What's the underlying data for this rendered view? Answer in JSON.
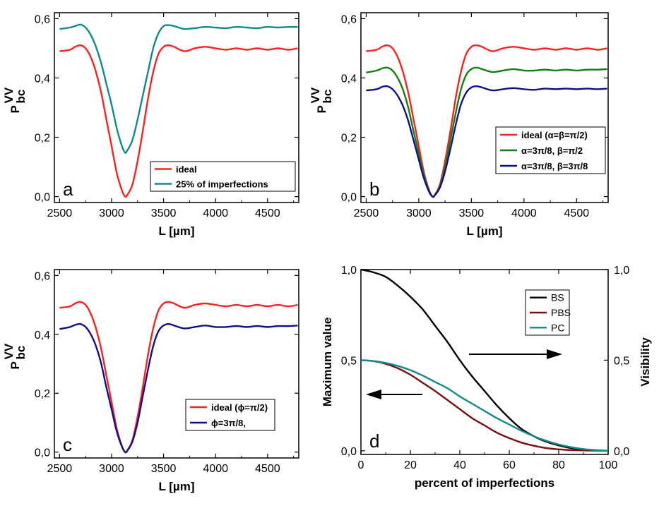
{
  "chart_data": [
    {
      "type": "line",
      "panel_label": "a",
      "xlabel": "L [µm]",
      "ylabel_main": "P",
      "ylabel_sup": "VV",
      "ylabel_sub": "bc",
      "xlim": [
        2450,
        4800
      ],
      "ylim": [
        -0.02,
        0.62
      ],
      "xticks": [
        2500,
        3000,
        3500,
        4000,
        4500
      ],
      "xtick_labels": [
        "2500",
        "3000",
        "3500",
        "4000",
        "4500"
      ],
      "yticks": [
        0.0,
        0.2,
        0.4,
        0.6
      ],
      "ytick_labels": [
        "0,0",
        "0,2",
        "0,4",
        "0,6"
      ],
      "legend_position": "bottom-right",
      "series": [
        {
          "name": "ideal",
          "color": "#ff2020",
          "x": [
            2500,
            2600,
            2650,
            2700,
            2750,
            2800,
            2850,
            2900,
            2950,
            3000,
            3050,
            3100,
            3130,
            3150,
            3200,
            3250,
            3300,
            3350,
            3400,
            3450,
            3500,
            3550,
            3600,
            3700,
            3800,
            3900,
            4000,
            4100,
            4200,
            4300,
            4400,
            4500,
            4600,
            4700,
            4790
          ],
          "y": [
            0.49,
            0.495,
            0.505,
            0.51,
            0.5,
            0.47,
            0.42,
            0.35,
            0.26,
            0.17,
            0.08,
            0.02,
            0.0,
            0.005,
            0.04,
            0.12,
            0.22,
            0.33,
            0.42,
            0.48,
            0.505,
            0.51,
            0.505,
            0.49,
            0.5,
            0.505,
            0.5,
            0.495,
            0.5,
            0.495,
            0.5,
            0.495,
            0.5,
            0.495,
            0.5
          ]
        },
        {
          "name": "25% of imperfections",
          "color": "#128a8a",
          "x": [
            2500,
            2600,
            2650,
            2700,
            2750,
            2800,
            2850,
            2900,
            2950,
            3000,
            3050,
            3100,
            3130,
            3150,
            3200,
            3250,
            3300,
            3350,
            3400,
            3450,
            3500,
            3550,
            3600,
            3700,
            3800,
            3900,
            4000,
            4100,
            4200,
            4300,
            4400,
            4500,
            4600,
            4700,
            4790
          ],
          "y": [
            0.565,
            0.57,
            0.575,
            0.58,
            0.57,
            0.545,
            0.505,
            0.45,
            0.38,
            0.31,
            0.23,
            0.17,
            0.148,
            0.155,
            0.19,
            0.26,
            0.34,
            0.42,
            0.5,
            0.55,
            0.575,
            0.578,
            0.575,
            0.565,
            0.568,
            0.572,
            0.57,
            0.568,
            0.572,
            0.57,
            0.568,
            0.572,
            0.57,
            0.572,
            0.572
          ]
        }
      ]
    },
    {
      "type": "line",
      "panel_label": "b",
      "xlabel": "L [µm]",
      "ylabel_main": "P",
      "ylabel_sup": "VV",
      "ylabel_sub": "bc",
      "xlim": [
        2450,
        4800
      ],
      "ylim": [
        -0.02,
        0.62
      ],
      "xticks": [
        2500,
        3000,
        3500,
        4000,
        4500
      ],
      "xtick_labels": [
        "2500",
        "3000",
        "3500",
        "4000",
        "4500"
      ],
      "yticks": [
        0.0,
        0.2,
        0.4,
        0.6
      ],
      "ytick_labels": [
        "0,0",
        "0,2",
        "0,4",
        "0,6"
      ],
      "legend_position": "bottom-right",
      "series": [
        {
          "name": "ideal (α=β=π/2)",
          "color": "#ff2020",
          "x": [
            2500,
            2600,
            2650,
            2700,
            2750,
            2800,
            2850,
            2900,
            2950,
            3000,
            3050,
            3100,
            3130,
            3150,
            3200,
            3250,
            3300,
            3350,
            3400,
            3450,
            3500,
            3550,
            3600,
            3700,
            3800,
            3900,
            4000,
            4100,
            4200,
            4300,
            4400,
            4500,
            4600,
            4700,
            4790
          ],
          "y": [
            0.49,
            0.495,
            0.505,
            0.51,
            0.5,
            0.47,
            0.42,
            0.35,
            0.26,
            0.17,
            0.08,
            0.02,
            0.0,
            0.005,
            0.04,
            0.12,
            0.22,
            0.33,
            0.42,
            0.48,
            0.505,
            0.51,
            0.505,
            0.49,
            0.5,
            0.505,
            0.5,
            0.495,
            0.5,
            0.495,
            0.5,
            0.495,
            0.5,
            0.495,
            0.5
          ]
        },
        {
          "name": "α=3π/8, β=π/2",
          "color": "#138013",
          "x": [
            2500,
            2600,
            2650,
            2700,
            2750,
            2800,
            2850,
            2900,
            2950,
            3000,
            3050,
            3100,
            3130,
            3150,
            3200,
            3250,
            3300,
            3350,
            3400,
            3450,
            3500,
            3550,
            3600,
            3700,
            3800,
            3900,
            4000,
            4100,
            4200,
            4300,
            4400,
            4500,
            4600,
            4700,
            4790
          ],
          "y": [
            0.418,
            0.425,
            0.432,
            0.435,
            0.425,
            0.4,
            0.36,
            0.3,
            0.22,
            0.145,
            0.07,
            0.018,
            0.0,
            0.004,
            0.035,
            0.1,
            0.19,
            0.28,
            0.36,
            0.41,
            0.43,
            0.435,
            0.43,
            0.42,
            0.425,
            0.43,
            0.425,
            0.425,
            0.428,
            0.425,
            0.428,
            0.425,
            0.428,
            0.428,
            0.43
          ]
        },
        {
          "name": "α=3π/8, β=3π/8",
          "color": "#10108a",
          "x": [
            2500,
            2600,
            2650,
            2700,
            2750,
            2800,
            2850,
            2900,
            2950,
            3000,
            3050,
            3100,
            3130,
            3150,
            3200,
            3250,
            3300,
            3350,
            3400,
            3450,
            3500,
            3550,
            3600,
            3700,
            3800,
            3900,
            4000,
            4100,
            4200,
            4300,
            4400,
            4500,
            4600,
            4700,
            4790
          ],
          "y": [
            0.358,
            0.362,
            0.37,
            0.372,
            0.362,
            0.34,
            0.305,
            0.255,
            0.19,
            0.125,
            0.06,
            0.015,
            0.0,
            0.003,
            0.03,
            0.085,
            0.16,
            0.24,
            0.31,
            0.35,
            0.368,
            0.372,
            0.368,
            0.358,
            0.362,
            0.366,
            0.362,
            0.36,
            0.364,
            0.362,
            0.364,
            0.362,
            0.364,
            0.362,
            0.364
          ]
        }
      ]
    },
    {
      "type": "line",
      "panel_label": "c",
      "xlabel": "L [µm]",
      "ylabel_main": "P",
      "ylabel_sup": "VV",
      "ylabel_sub": "bc",
      "xlim": [
        2450,
        4800
      ],
      "ylim": [
        -0.02,
        0.62
      ],
      "xticks": [
        2500,
        3000,
        3500,
        4000,
        4500
      ],
      "xtick_labels": [
        "2500",
        "3000",
        "3500",
        "4000",
        "4500"
      ],
      "yticks": [
        0.0,
        0.2,
        0.4,
        0.6
      ],
      "ytick_labels": [
        "0,0",
        "0,2",
        "0,4",
        "0,6"
      ],
      "legend_position": "bottom-right",
      "series": [
        {
          "name": "ideal (ϕ=π/2)",
          "color": "#ff2020",
          "x": [
            2500,
            2600,
            2650,
            2700,
            2750,
            2800,
            2850,
            2900,
            2950,
            3000,
            3050,
            3100,
            3130,
            3150,
            3200,
            3250,
            3300,
            3350,
            3400,
            3450,
            3500,
            3550,
            3600,
            3700,
            3800,
            3900,
            4000,
            4100,
            4200,
            4300,
            4400,
            4500,
            4600,
            4700,
            4790
          ],
          "y": [
            0.49,
            0.495,
            0.505,
            0.51,
            0.5,
            0.47,
            0.42,
            0.35,
            0.26,
            0.17,
            0.08,
            0.02,
            0.0,
            0.005,
            0.04,
            0.12,
            0.22,
            0.33,
            0.42,
            0.48,
            0.505,
            0.51,
            0.505,
            0.49,
            0.5,
            0.505,
            0.5,
            0.495,
            0.5,
            0.495,
            0.5,
            0.495,
            0.5,
            0.495,
            0.5
          ]
        },
        {
          "name": "ϕ=3π/8,",
          "color": "#10108a",
          "x": [
            2500,
            2600,
            2650,
            2700,
            2750,
            2800,
            2850,
            2900,
            2950,
            3000,
            3050,
            3100,
            3130,
            3150,
            3200,
            3250,
            3300,
            3350,
            3400,
            3450,
            3500,
            3550,
            3600,
            3700,
            3800,
            3900,
            4000,
            4100,
            4200,
            4300,
            4400,
            4500,
            4600,
            4700,
            4790
          ],
          "y": [
            0.418,
            0.425,
            0.432,
            0.435,
            0.425,
            0.4,
            0.36,
            0.3,
            0.22,
            0.145,
            0.07,
            0.018,
            0.0,
            0.004,
            0.035,
            0.1,
            0.19,
            0.28,
            0.36,
            0.41,
            0.43,
            0.435,
            0.43,
            0.42,
            0.425,
            0.43,
            0.425,
            0.425,
            0.428,
            0.425,
            0.428,
            0.425,
            0.428,
            0.428,
            0.43
          ]
        }
      ]
    },
    {
      "type": "line",
      "panel_label": "d",
      "xlabel": "percent of imperfections",
      "ylabel_left": "Maximum value",
      "ylabel_right": "Visibility",
      "xlim": [
        0,
        100
      ],
      "ylim": [
        -0.02,
        1.0
      ],
      "xticks": [
        0,
        20,
        40,
        60,
        80,
        100
      ],
      "xtick_labels": [
        "0",
        "20",
        "40",
        "60",
        "80",
        "100"
      ],
      "yticks": [
        0.0,
        0.5,
        1.0
      ],
      "ytick_labels": [
        "0,0",
        "0,5",
        "1,0"
      ],
      "yticks_right": [
        0.0,
        0.5,
        1.0
      ],
      "ytick_labels_right": [
        "0,0",
        "0,5",
        "1,0"
      ],
      "legend_position": "top-right",
      "arrows": [
        "points left to Maximum value axis",
        "points right to Visibility axis"
      ],
      "series": [
        {
          "name": "BS",
          "color": "#000000",
          "axis": "right",
          "x": [
            0,
            5,
            10,
            15,
            20,
            25,
            30,
            35,
            40,
            45,
            50,
            55,
            60,
            65,
            70,
            75,
            80,
            85,
            90,
            95,
            100
          ],
          "y": [
            1.0,
            0.985,
            0.96,
            0.91,
            0.85,
            0.78,
            0.69,
            0.6,
            0.5,
            0.41,
            0.33,
            0.25,
            0.18,
            0.12,
            0.08,
            0.05,
            0.03,
            0.015,
            0.008,
            0.003,
            0.0
          ]
        },
        {
          "name": "PBS",
          "color": "#7a0f0f",
          "axis": "left",
          "x": [
            0,
            5,
            10,
            15,
            20,
            25,
            30,
            35,
            40,
            45,
            50,
            55,
            60,
            65,
            70,
            75,
            80,
            85,
            90,
            95,
            100
          ],
          "y": [
            0.5,
            0.495,
            0.48,
            0.455,
            0.42,
            0.375,
            0.33,
            0.28,
            0.23,
            0.18,
            0.14,
            0.1,
            0.07,
            0.045,
            0.028,
            0.015,
            0.008,
            0.004,
            0.002,
            0.001,
            0.0
          ]
        },
        {
          "name": "PC",
          "color": "#128a8a",
          "axis": "left",
          "x": [
            0,
            5,
            10,
            15,
            20,
            25,
            30,
            35,
            40,
            45,
            50,
            55,
            60,
            65,
            70,
            75,
            80,
            85,
            90,
            95,
            100
          ],
          "y": [
            0.5,
            0.495,
            0.485,
            0.468,
            0.445,
            0.415,
            0.38,
            0.345,
            0.3,
            0.26,
            0.22,
            0.18,
            0.145,
            0.11,
            0.08,
            0.055,
            0.035,
            0.02,
            0.01,
            0.004,
            0.0
          ]
        }
      ]
    }
  ]
}
